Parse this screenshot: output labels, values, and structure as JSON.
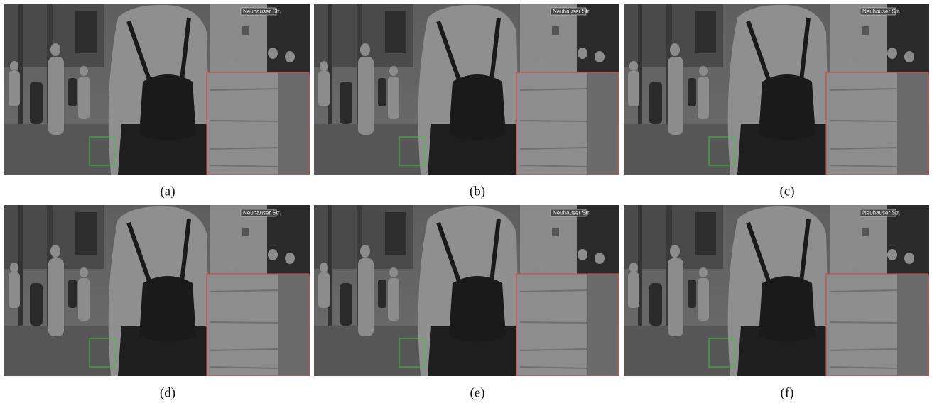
{
  "figure": {
    "sign": "Neuhauser Str.",
    "panels": [
      {
        "label": "(a)"
      },
      {
        "label": "(b)"
      },
      {
        "label": "(c)"
      },
      {
        "label": "(d)"
      },
      {
        "label": "(e)"
      },
      {
        "label": "(f)"
      }
    ]
  }
}
